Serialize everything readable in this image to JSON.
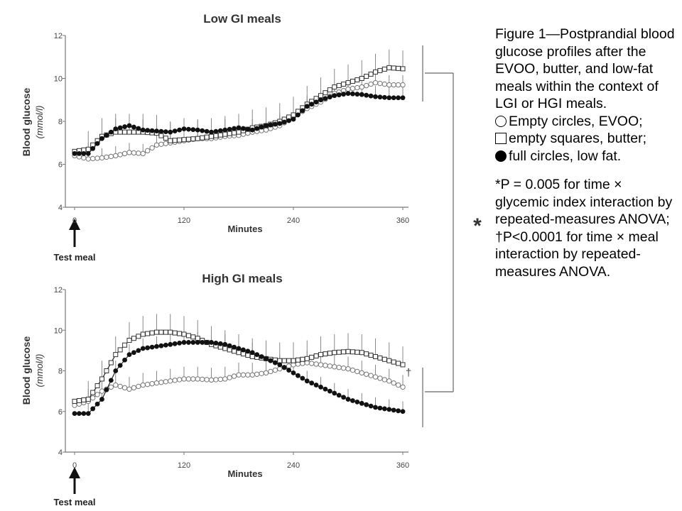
{
  "figure": {
    "caption_title": "Figure 1—Postprandial blood glucose profiles after the EVOO, butter, and low-fat meals within the context of LGI or HGI meals.",
    "legend": [
      {
        "marker": "circle-open",
        "text": "Empty circles, EVOO;"
      },
      {
        "marker": "square-open",
        "text": "empty squares, butter;"
      },
      {
        "marker": "circle-full",
        "text": "full circles, low fat."
      }
    ],
    "note_star": "*P = 0.005 for time × glycemic index interaction by repeated-measures ANOVA;",
    "note_dagger": "†P<0.0001 for time × meal interaction by repeated-measures ANOVA.",
    "star_symbol": "*",
    "dagger_symbol": "†"
  },
  "chart_data": [
    {
      "type": "line",
      "title": "Low GI meals",
      "xlabel": "Minutes",
      "ylabel": "Blood glucose",
      "ylabel_unit": "(mmol/l)",
      "annotation": "Test meal",
      "xlim": [
        0,
        360
      ],
      "ylim": [
        4,
        12
      ],
      "xticks": [
        0,
        120,
        240,
        360
      ],
      "yticks": [
        4,
        6,
        8,
        10,
        12
      ],
      "grid": false,
      "series": [
        {
          "name": "EVOO",
          "marker": "circle-open",
          "x": [
            0,
            15,
            30,
            45,
            60,
            75,
            90,
            105,
            120,
            135,
            150,
            165,
            180,
            195,
            210,
            225,
            240,
            255,
            270,
            285,
            300,
            315,
            330,
            345,
            360
          ],
          "y": [
            6.4,
            6.25,
            6.3,
            6.4,
            6.55,
            6.5,
            6.9,
            7.0,
            7.1,
            7.2,
            7.2,
            7.3,
            7.35,
            7.5,
            7.6,
            7.8,
            8.2,
            8.6,
            8.9,
            9.3,
            9.5,
            9.6,
            9.8,
            9.7,
            9.7
          ]
        },
        {
          "name": "butter",
          "marker": "square-open",
          "x": [
            0,
            15,
            30,
            45,
            60,
            75,
            90,
            105,
            120,
            135,
            150,
            165,
            180,
            195,
            210,
            225,
            240,
            255,
            270,
            285,
            300,
            315,
            330,
            345,
            360
          ],
          "y": [
            6.6,
            6.7,
            7.3,
            7.5,
            7.5,
            7.5,
            7.45,
            7.1,
            7.15,
            7.2,
            7.3,
            7.4,
            7.5,
            7.7,
            7.8,
            8.0,
            8.3,
            8.8,
            9.2,
            9.6,
            9.8,
            10.0,
            10.3,
            10.5,
            10.45
          ]
        },
        {
          "name": "low fat",
          "marker": "circle-full",
          "x": [
            0,
            15,
            30,
            45,
            60,
            75,
            90,
            105,
            120,
            135,
            150,
            165,
            180,
            195,
            210,
            225,
            240,
            255,
            270,
            285,
            300,
            315,
            330,
            345,
            360
          ],
          "y": [
            6.5,
            6.5,
            7.2,
            7.65,
            7.8,
            7.6,
            7.55,
            7.5,
            7.65,
            7.6,
            7.5,
            7.6,
            7.7,
            7.6,
            7.8,
            7.9,
            8.1,
            8.7,
            9.0,
            9.2,
            9.3,
            9.25,
            9.15,
            9.1,
            9.1
          ]
        }
      ]
    },
    {
      "type": "line",
      "title": "High GI meals",
      "xlabel": "Minutes",
      "ylabel": "Blood glucose",
      "ylabel_unit": "(mmol/l)",
      "annotation": "Test meal",
      "xlim": [
        0,
        360
      ],
      "ylim": [
        4,
        12
      ],
      "xticks": [
        0,
        120,
        240,
        360
      ],
      "yticks": [
        4,
        6,
        8,
        10,
        12
      ],
      "grid": false,
      "series": [
        {
          "name": "EVOO",
          "marker": "circle-open",
          "x": [
            0,
            15,
            30,
            45,
            60,
            75,
            90,
            105,
            120,
            135,
            150,
            165,
            180,
            195,
            210,
            225,
            240,
            255,
            270,
            285,
            300,
            315,
            330,
            345,
            360
          ],
          "y": [
            6.3,
            6.5,
            7.0,
            7.3,
            7.1,
            7.3,
            7.4,
            7.5,
            7.6,
            7.6,
            7.55,
            7.6,
            7.8,
            7.8,
            7.9,
            8.1,
            8.3,
            8.4,
            8.3,
            8.2,
            8.1,
            7.9,
            7.7,
            7.5,
            7.2
          ]
        },
        {
          "name": "butter",
          "marker": "square-open",
          "x": [
            0,
            15,
            30,
            45,
            60,
            75,
            90,
            105,
            120,
            135,
            150,
            165,
            180,
            195,
            210,
            225,
            240,
            255,
            270,
            285,
            300,
            315,
            330,
            345,
            360
          ],
          "y": [
            6.5,
            6.6,
            7.6,
            8.8,
            9.5,
            9.8,
            9.9,
            9.9,
            9.8,
            9.6,
            9.3,
            9.1,
            8.9,
            8.7,
            8.6,
            8.5,
            8.5,
            8.6,
            8.8,
            8.9,
            8.95,
            8.9,
            8.7,
            8.5,
            8.3
          ]
        },
        {
          "name": "low fat",
          "marker": "circle-full",
          "x": [
            0,
            15,
            30,
            45,
            60,
            75,
            90,
            105,
            120,
            135,
            150,
            165,
            180,
            195,
            210,
            225,
            240,
            255,
            270,
            285,
            300,
            315,
            330,
            345,
            360
          ],
          "y": [
            5.9,
            5.9,
            6.6,
            8.0,
            8.8,
            9.1,
            9.2,
            9.3,
            9.4,
            9.4,
            9.4,
            9.3,
            9.1,
            8.9,
            8.6,
            8.3,
            7.9,
            7.5,
            7.2,
            6.9,
            6.6,
            6.4,
            6.2,
            6.1,
            6.0
          ]
        }
      ]
    }
  ]
}
